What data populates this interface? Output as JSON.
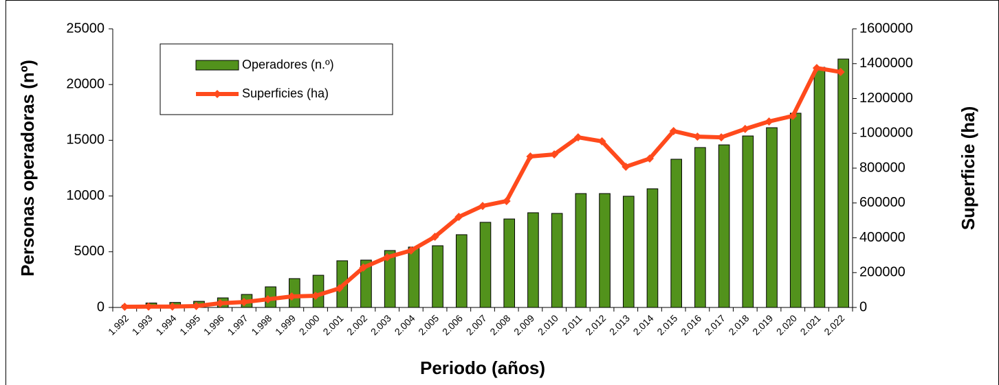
{
  "chart_data": {
    "type": "bar_line",
    "x_label": "Periodo (años)",
    "y_label": "Personas operadoras (nº)",
    "y2_label": "Superficie (ha)",
    "categories": [
      "1.992",
      "1.993",
      "1.994",
      "1.995",
      "1.996",
      "1.997",
      "1.998",
      "1.999",
      "2.000",
      "2.001",
      "2.002",
      "2.003",
      "2.004",
      "2.005",
      "2.006",
      "2.007",
      "2.008",
      "2.009",
      "2.010",
      "2.011",
      "2.012",
      "2.013",
      "2.014",
      "2.015",
      "2.016",
      "2.017",
      "2.018",
      "2.019",
      "2.020",
      "2.021",
      "2.022"
    ],
    "series": [
      {
        "name": "Operadores (n.º)",
        "type": "bar",
        "color": "#52921c",
        "values": [
          200,
          400,
          450,
          550,
          860,
          1170,
          1850,
          2590,
          2890,
          4190,
          4250,
          5110,
          5420,
          5540,
          6530,
          7640,
          7940,
          8500,
          8440,
          10220,
          10220,
          9980,
          10650,
          13300,
          14350,
          14590,
          15390,
          16130,
          17430,
          21550,
          22290
        ]
      },
      {
        "name": "Superficies (ha)",
        "type": "line",
        "axis": "y2",
        "color": "#ff4a1c",
        "values": [
          4000,
          5000,
          5000,
          8000,
          24000,
          31000,
          47000,
          63000,
          67000,
          110000,
          229000,
          288000,
          327000,
          406000,
          520000,
          583000,
          611000,
          867000,
          879000,
          977000,
          954000,
          808000,
          855000,
          1013000,
          981000,
          977000,
          1025000,
          1068000,
          1100000,
          1375000,
          1352000
        ]
      }
    ],
    "ylim": [
      0,
      25000
    ],
    "yticks": [
      0,
      5000,
      10000,
      15000,
      20000,
      25000
    ],
    "y2lim": [
      0,
      1600000
    ],
    "y2ticks": [
      0,
      200000,
      400000,
      600000,
      800000,
      1000000,
      1200000,
      1400000,
      1600000
    ]
  }
}
